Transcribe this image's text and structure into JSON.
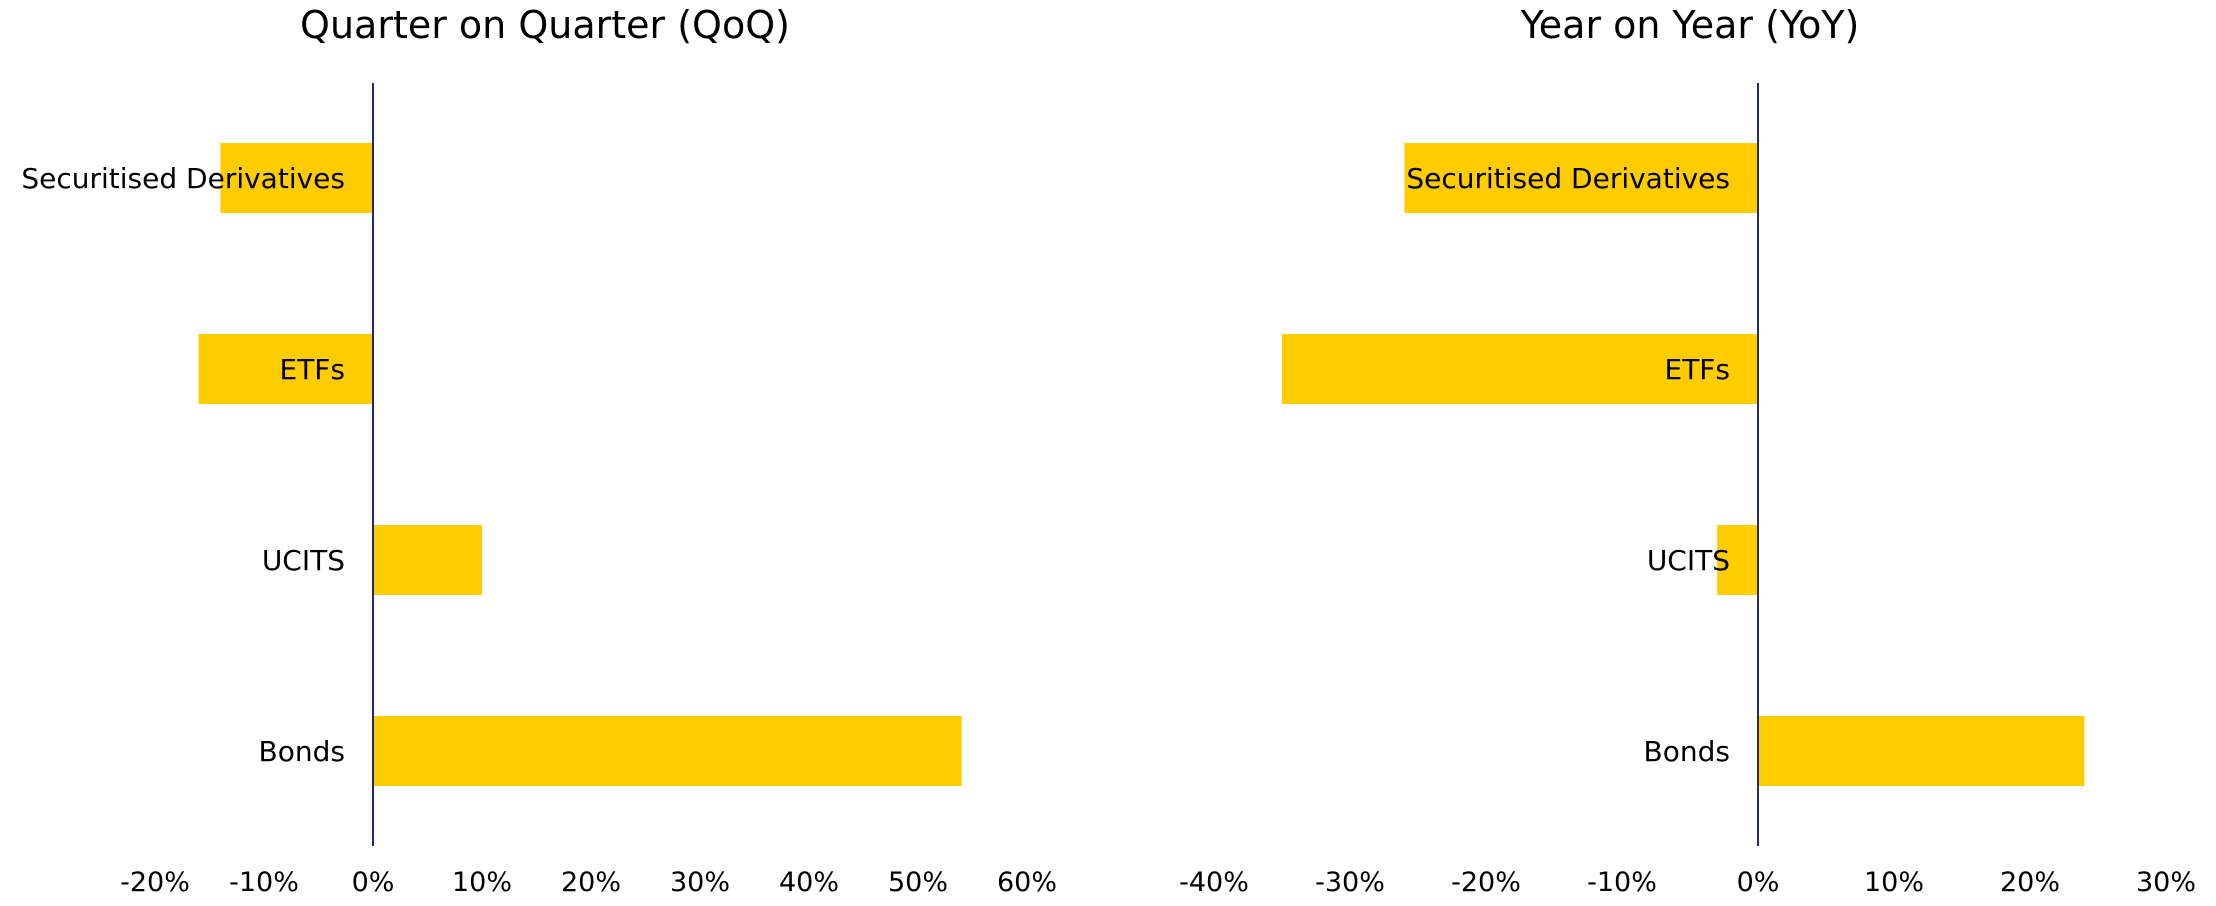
{
  "chart_data": [
    {
      "type": "bar",
      "orientation": "horizontal",
      "title": "Quarter on Quarter (QoQ)",
      "categories": [
        "Securitised Derivatives",
        "ETFs",
        "UCITS",
        "Bonds"
      ],
      "values": [
        -14,
        -16,
        10,
        54
      ],
      "xlim": [
        -20,
        60
      ],
      "xticks": [
        -20,
        -10,
        0,
        10,
        20,
        30,
        40,
        50,
        60
      ],
      "tick_format": "percent",
      "bar_color": "#FFCC00",
      "axis_color": "#1F2A7A",
      "grid": false,
      "legend": "none"
    },
    {
      "type": "bar",
      "orientation": "horizontal",
      "title": "Year on Year (YoY)",
      "categories": [
        "Securitised Derivatives",
        "ETFs",
        "UCITS",
        "Bonds"
      ],
      "values": [
        -26,
        -35,
        -3,
        24
      ],
      "xlim": [
        -40,
        30
      ],
      "xticks": [
        -40,
        -30,
        -20,
        -10,
        0,
        10,
        20,
        30
      ],
      "tick_format": "percent",
      "bar_color": "#FFCC00",
      "axis_color": "#1F2A7A",
      "grid": false,
      "legend": "none"
    }
  ]
}
